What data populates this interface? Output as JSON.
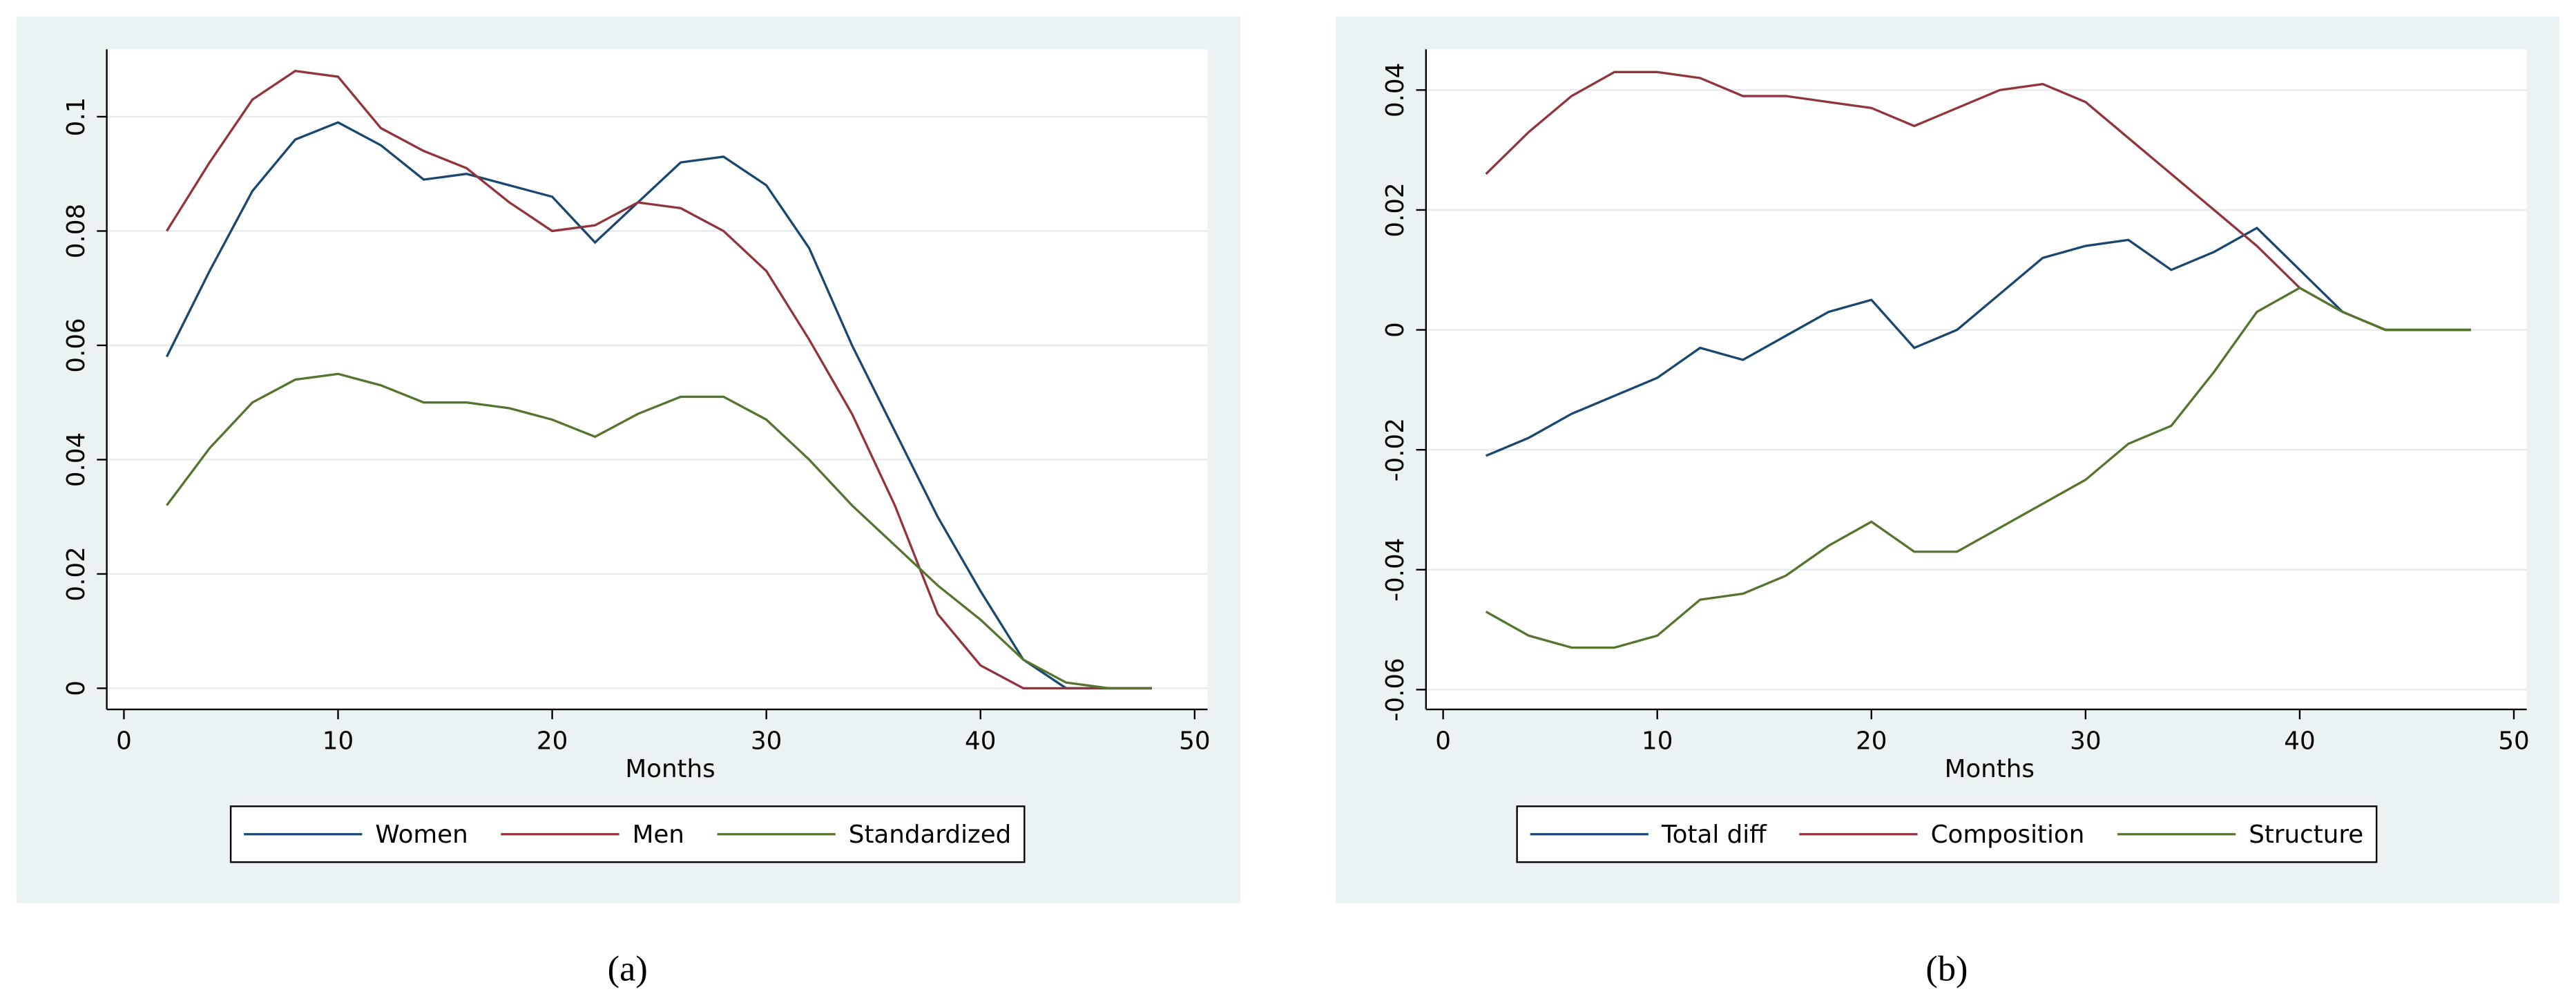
{
  "chart_data": [
    {
      "type": "line",
      "panel_label": "(a)",
      "x_label": "Months",
      "x": [
        2,
        4,
        6,
        8,
        10,
        12,
        14,
        16,
        18,
        20,
        22,
        24,
        26,
        28,
        30,
        32,
        34,
        36,
        38,
        40,
        42,
        44,
        46,
        48
      ],
      "series": [
        {
          "name": "Women",
          "color": "#1a476f",
          "values": [
            0.058,
            0.073,
            0.087,
            0.096,
            0.099,
            0.095,
            0.089,
            0.09,
            0.088,
            0.086,
            0.078,
            0.085,
            0.092,
            0.093,
            0.088,
            0.077,
            0.06,
            0.045,
            0.03,
            0.017,
            0.005,
            0,
            0,
            0
          ]
        },
        {
          "name": "Men",
          "color": "#90353b",
          "values": [
            0.08,
            0.092,
            0.103,
            0.108,
            0.107,
            0.098,
            0.094,
            0.091,
            0.085,
            0.08,
            0.081,
            0.085,
            0.084,
            0.08,
            0.073,
            0.061,
            0.048,
            0.032,
            0.013,
            0.004,
            0,
            0,
            0,
            0
          ]
        },
        {
          "name": "Standardized",
          "color": "#55752f",
          "values": [
            0.032,
            0.042,
            0.05,
            0.054,
            0.055,
            0.053,
            0.05,
            0.05,
            0.049,
            0.047,
            0.044,
            0.048,
            0.051,
            0.051,
            0.047,
            0.04,
            0.032,
            0.025,
            0.018,
            0.012,
            0.005,
            0.001,
            0,
            0
          ]
        }
      ],
      "xlim": [
        -0.8,
        50.6
      ],
      "xticks": [
        0,
        10,
        20,
        30,
        40,
        50
      ],
      "ylim": [
        -0.0037,
        0.1118
      ],
      "yticks": [
        0,
        0.02,
        0.04,
        0.06,
        0.08,
        0.1
      ],
      "grid": true
    },
    {
      "type": "line",
      "panel_label": "(b)",
      "x_label": "Months",
      "x": [
        2,
        4,
        6,
        8,
        10,
        12,
        14,
        16,
        18,
        20,
        22,
        24,
        26,
        28,
        30,
        32,
        34,
        36,
        38,
        40,
        42,
        44,
        46,
        48
      ],
      "series": [
        {
          "name": "Total diff",
          "color": "#1a476f",
          "values": [
            -0.021,
            -0.018,
            -0.014,
            -0.011,
            -0.008,
            -0.003,
            -0.005,
            -0.001,
            0.003,
            0.005,
            -0.003,
            0.0,
            0.006,
            0.012,
            0.014,
            0.015,
            0.01,
            0.013,
            0.017,
            0.01,
            0.003,
            0,
            0,
            0
          ]
        },
        {
          "name": "Composition",
          "color": "#90353b",
          "values": [
            0.026,
            0.033,
            0.039,
            0.043,
            0.043,
            0.042,
            0.039,
            0.039,
            0.038,
            0.037,
            0.034,
            0.037,
            0.04,
            0.041,
            0.038,
            0.032,
            0.026,
            0.02,
            0.014,
            0.007,
            0.003,
            0,
            0,
            0
          ]
        },
        {
          "name": "Structure",
          "color": "#55752f",
          "values": [
            -0.047,
            -0.051,
            -0.053,
            -0.053,
            -0.051,
            -0.045,
            -0.044,
            -0.041,
            -0.036,
            -0.032,
            -0.037,
            -0.037,
            -0.033,
            -0.029,
            -0.025,
            -0.019,
            -0.016,
            -0.007,
            0.003,
            0.007,
            0.003,
            0,
            0,
            0
          ]
        }
      ],
      "xlim": [
        -0.8,
        50.6
      ],
      "xticks": [
        0,
        10,
        20,
        30,
        40,
        50
      ],
      "ylim": [
        -0.0633,
        0.0468
      ],
      "yticks": [
        -0.06,
        -0.04,
        -0.02,
        0,
        0.02,
        0.04
      ],
      "grid": true
    }
  ]
}
